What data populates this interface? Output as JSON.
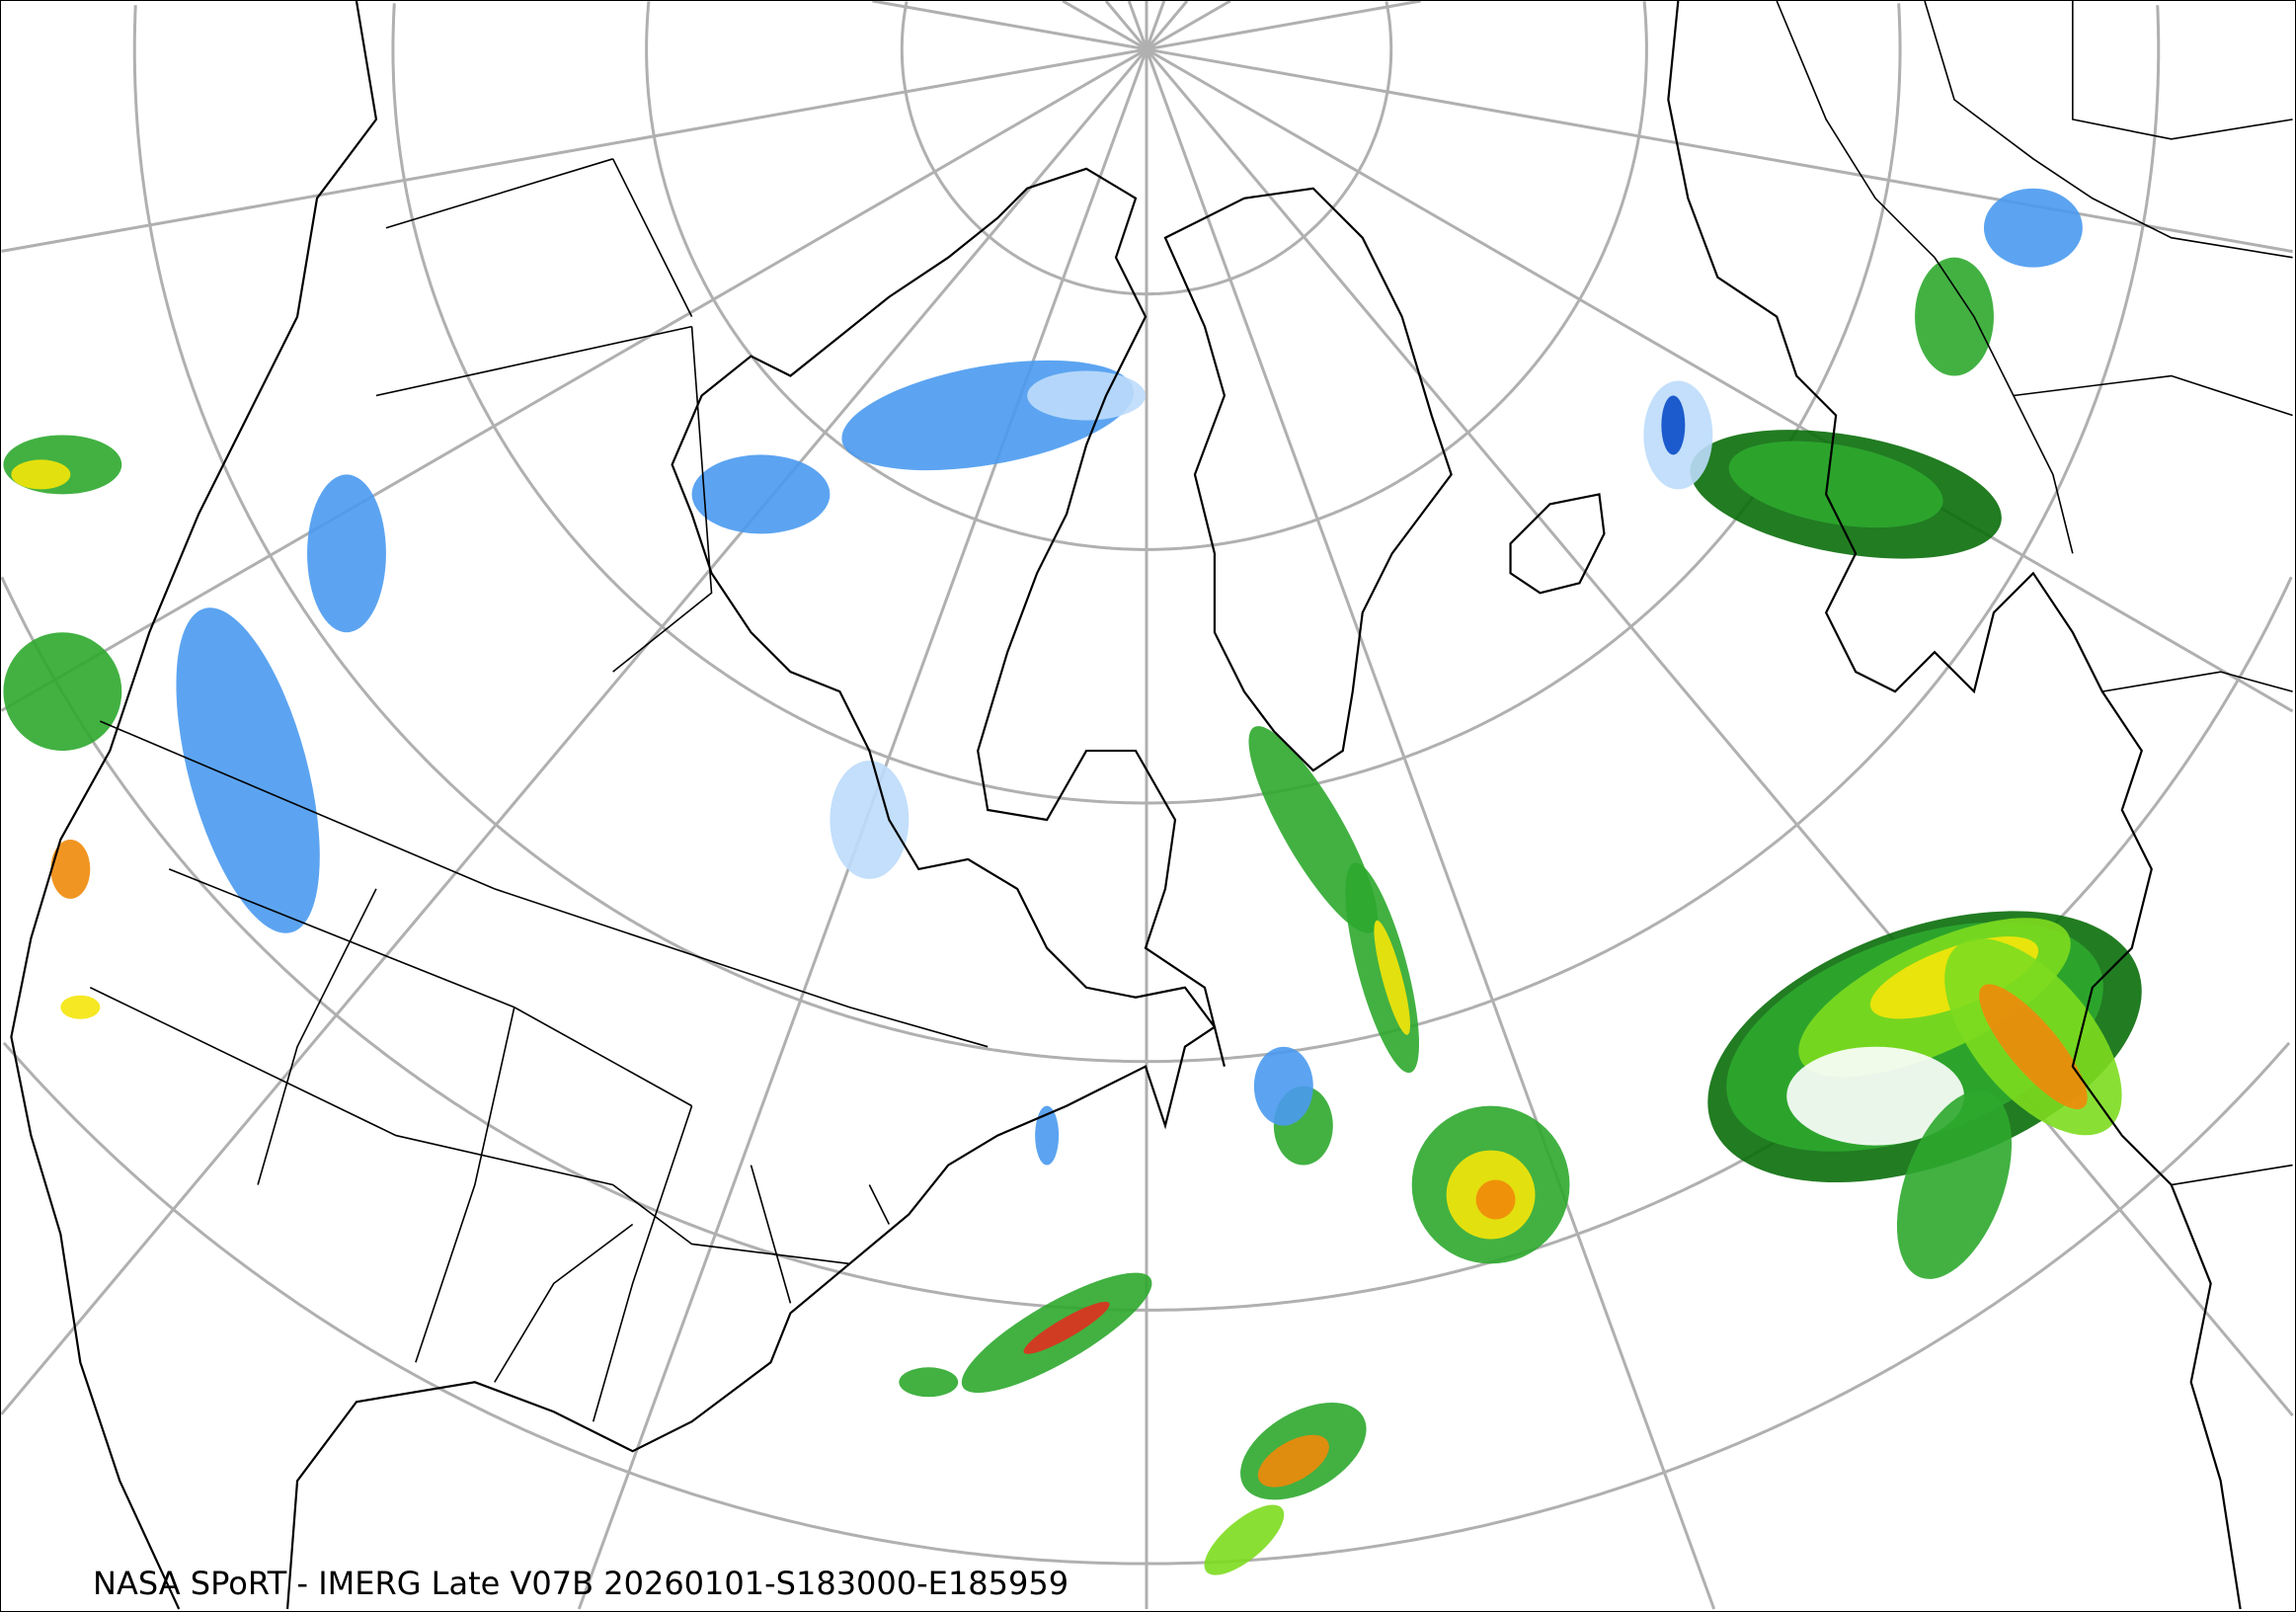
{
  "caption": "NASA SPoRT - IMERG Late V07B 20260101-S183000-E185959",
  "colors": {
    "graticule": "#b0b0b0",
    "coastline": "#000000",
    "rain_light": "#2ea82e",
    "rain_dark": "#0a6e0a",
    "rain_moderate": "#7ddc1f",
    "rain_heavy": "#f5e50a",
    "rain_intense": "#f08a0a",
    "rain_extreme": "#e0301e",
    "snow_light": "#bcdcfb",
    "snow_moderate": "#4a9af0",
    "snow_heavy": "#0a4cc8",
    "mixed": "#e040e0"
  }
}
